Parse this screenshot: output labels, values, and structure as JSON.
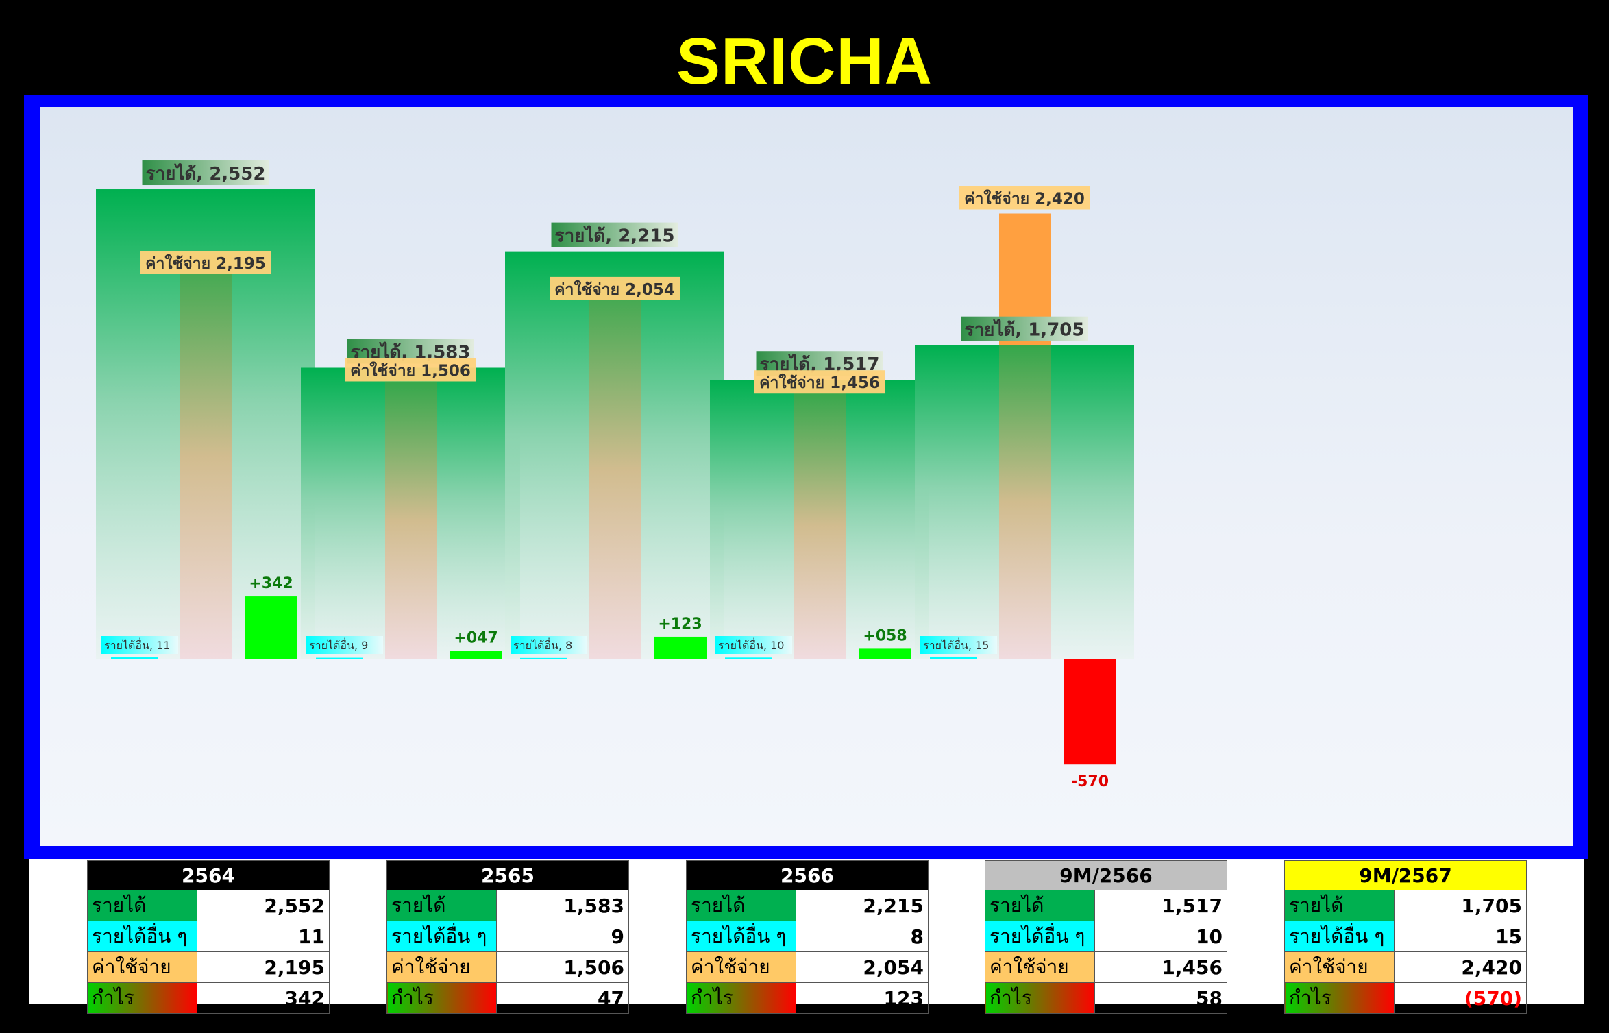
{
  "title": "SRICHA",
  "colors": {
    "background": "#000000",
    "title": "#ffff00",
    "frame": "#0000ff",
    "revenue": "#00b050",
    "expense": "#ffa040",
    "profit_positive": "#00ff00",
    "profit_negative": "#ff0000",
    "other_income": "#00ffff"
  },
  "chart_data": {
    "type": "bar",
    "categories": [
      "2564",
      "2565",
      "2566",
      "9M/2566",
      "9M/2567"
    ],
    "series": [
      {
        "name": "รายได้",
        "values": [
          2552,
          1583,
          2215,
          1517,
          1705
        ]
      },
      {
        "name": "ค่าใช้จ่าย",
        "values": [
          2195,
          1506,
          2054,
          1456,
          2420
        ]
      },
      {
        "name": "รายได้อื่น",
        "values": [
          11,
          9,
          8,
          10,
          15
        ]
      },
      {
        "name": "กำไร",
        "values": [
          342,
          47,
          123,
          58,
          -570
        ]
      }
    ],
    "labels": {
      "revenue": [
        "รายได้, 2,552",
        "รายได้, 1,583",
        "รายได้, 2,215",
        "รายได้, 1,517",
        "รายได้, 1,705"
      ],
      "expense": [
        "ค่าใช้จ่าย 2,195",
        "ค่าใช้จ่าย 1,506",
        "ค่าใช้จ่าย 2,054",
        "ค่าใช้จ่าย 1,456",
        "ค่าใช้จ่าย 2,420"
      ],
      "other": [
        "รายได้อื่น, 11",
        "รายได้อื่น, 9",
        "รายได้อื่น, 8",
        "รายได้อื่น, 10",
        "รายได้อื่น, 15"
      ],
      "profit": [
        "+342",
        "+047",
        "+123",
        "+058",
        "-570"
      ]
    },
    "ylim": [
      -800,
      2900
    ],
    "grid": false,
    "legend": "none"
  },
  "tables": [
    {
      "header": "2564",
      "header_bg": "#000000",
      "header_fg": "#ffffff",
      "rows": [
        {
          "label": "รายได้",
          "value": "2,552",
          "kind": "rev"
        },
        {
          "label": "รายได้อื่น ๆ",
          "value": "11",
          "kind": "oth"
        },
        {
          "label": "ค่าใช้จ่าย",
          "value": "2,195",
          "kind": "exp"
        },
        {
          "label": "กำไร",
          "value": "342",
          "kind": "prof",
          "value_color": "#000000"
        }
      ]
    },
    {
      "header": "2565",
      "header_bg": "#000000",
      "header_fg": "#ffffff",
      "rows": [
        {
          "label": "รายได้",
          "value": "1,583",
          "kind": "rev"
        },
        {
          "label": "รายได้อื่น ๆ",
          "value": "9",
          "kind": "oth"
        },
        {
          "label": "ค่าใช้จ่าย",
          "value": "1,506",
          "kind": "exp"
        },
        {
          "label": "กำไร",
          "value": "47",
          "kind": "prof",
          "value_color": "#000000"
        }
      ]
    },
    {
      "header": "2566",
      "header_bg": "#000000",
      "header_fg": "#ffffff",
      "rows": [
        {
          "label": "รายได้",
          "value": "2,215",
          "kind": "rev"
        },
        {
          "label": "รายได้อื่น ๆ",
          "value": "8",
          "kind": "oth"
        },
        {
          "label": "ค่าใช้จ่าย",
          "value": "2,054",
          "kind": "exp"
        },
        {
          "label": "กำไร",
          "value": "123",
          "kind": "prof",
          "value_color": "#000000"
        }
      ]
    },
    {
      "header": "9M/2566",
      "header_bg": "#c0c0c0",
      "header_fg": "#000000",
      "rows": [
        {
          "label": "รายได้",
          "value": "1,517",
          "kind": "rev"
        },
        {
          "label": "รายได้อื่น ๆ",
          "value": "10",
          "kind": "oth"
        },
        {
          "label": "ค่าใช้จ่าย",
          "value": "1,456",
          "kind": "exp"
        },
        {
          "label": "กำไร",
          "value": "58",
          "kind": "prof",
          "value_color": "#000000"
        }
      ]
    },
    {
      "header": "9M/2567",
      "header_bg": "#ffff00",
      "header_fg": "#000000",
      "rows": [
        {
          "label": "รายได้",
          "value": "1,705",
          "kind": "rev"
        },
        {
          "label": "รายได้อื่น ๆ",
          "value": "15",
          "kind": "oth"
        },
        {
          "label": "ค่าใช้จ่าย",
          "value": "2,420",
          "kind": "exp"
        },
        {
          "label": "กำไร",
          "value": "(570)",
          "kind": "prof",
          "value_color": "#ff0000"
        }
      ]
    }
  ]
}
